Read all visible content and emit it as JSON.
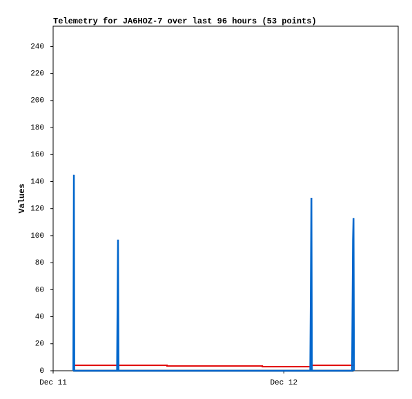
{
  "chart_data": {
    "type": "line",
    "title": "Telemetry for JA6HOZ-7 over last 96 hours (53 points)",
    "y_label": "Values",
    "xlim": [
      0,
      35.9
    ],
    "xticks": [
      {
        "value": 0,
        "label": "Dec 11"
      },
      {
        "value": 24,
        "label": "Dec 12"
      }
    ],
    "ylim": [
      0,
      255
    ],
    "yticks": [
      0,
      20,
      40,
      60,
      80,
      100,
      120,
      140,
      160,
      180,
      200,
      220,
      240
    ],
    "series": [
      {
        "color": "#000000",
        "x": [
          2.1,
          31.25
        ],
        "values": [
          0,
          0
        ]
      },
      {
        "color": "#e00000",
        "x": [
          2.1,
          11.85,
          11.85,
          21.77,
          21.77,
          26.8,
          26.8,
          31.25
        ],
        "values": [
          4,
          4,
          3.5,
          3.5,
          3,
          3,
          4,
          4
        ]
      },
      {
        "color": "#0066cc",
        "x": [
          2.1,
          2.16,
          2.2,
          6.65,
          6.7,
          6.75,
          6.8,
          26.75,
          26.8,
          26.87,
          26.92,
          31.1,
          31.15,
          31.2,
          31.25,
          31.3
        ],
        "values": [
          0,
          145,
          0,
          0,
          49,
          97,
          0,
          0,
          49,
          128,
          0,
          0,
          49,
          97,
          113,
          0
        ]
      }
    ]
  }
}
